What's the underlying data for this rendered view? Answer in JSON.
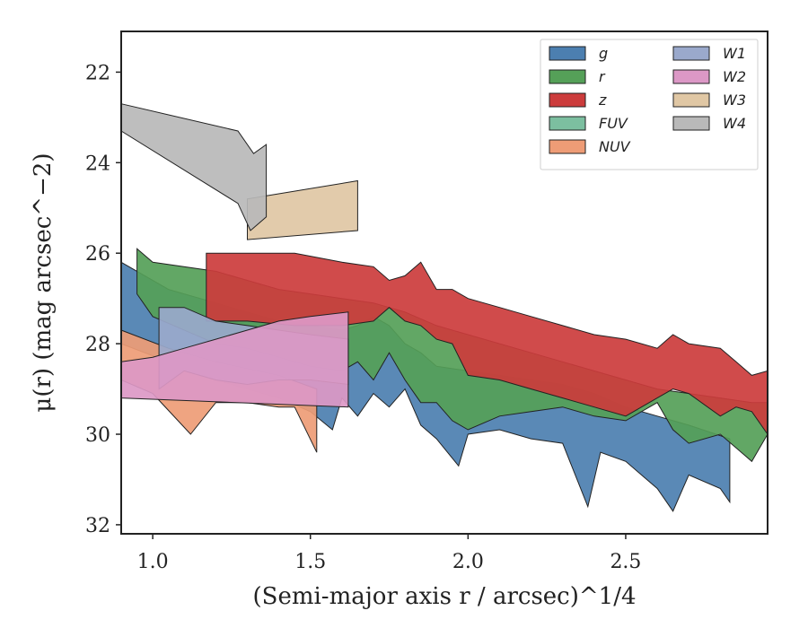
{
  "chart_data": {
    "type": "area",
    "xlabel": "(Semi-major axis r / arcsec)^1/4",
    "ylabel": "μ(r) (mag arcsec^−2)",
    "xlim": [
      0.9,
      2.95
    ],
    "ylim": [
      32.2,
      21.1
    ],
    "y_inverted": true,
    "x_ticks": [
      1.0,
      1.5,
      2.0,
      2.5
    ],
    "y_ticks": [
      22,
      24,
      26,
      28,
      30,
      32
    ],
    "grid": false,
    "legend": {
      "placement": "top-right",
      "columns": 2
    },
    "series": [
      {
        "name": "g",
        "color": "#4c7fb0",
        "upper": [
          [
            0.9,
            26.2
          ],
          [
            1.05,
            26.8
          ],
          [
            1.2,
            27.1
          ],
          [
            1.3,
            27.3
          ],
          [
            1.4,
            27.5
          ],
          [
            1.5,
            27.6
          ],
          [
            1.6,
            27.7
          ],
          [
            1.65,
            27.6
          ],
          [
            1.7,
            27.4
          ],
          [
            1.75,
            27.6
          ],
          [
            1.8,
            28.0
          ],
          [
            1.85,
            28.2
          ],
          [
            1.9,
            28.5
          ],
          [
            2.0,
            28.6
          ],
          [
            2.1,
            28.7
          ],
          [
            2.2,
            28.8
          ],
          [
            2.3,
            28.9
          ],
          [
            2.4,
            29.1
          ],
          [
            2.5,
            29.4
          ],
          [
            2.6,
            29.6
          ],
          [
            2.7,
            29.8
          ],
          [
            2.83,
            30.1
          ]
        ],
        "lower": [
          [
            0.9,
            28.0
          ],
          [
            1.05,
            28.4
          ],
          [
            1.2,
            28.8
          ],
          [
            1.3,
            29.0
          ],
          [
            1.4,
            29.2
          ],
          [
            1.5,
            29.5
          ],
          [
            1.57,
            29.9
          ],
          [
            1.6,
            29.2
          ],
          [
            1.65,
            29.6
          ],
          [
            1.7,
            29.1
          ],
          [
            1.75,
            29.4
          ],
          [
            1.8,
            29.0
          ],
          [
            1.85,
            29.8
          ],
          [
            1.9,
            30.1
          ],
          [
            1.97,
            30.7
          ],
          [
            2.0,
            30.0
          ],
          [
            2.1,
            29.9
          ],
          [
            2.2,
            30.1
          ],
          [
            2.3,
            30.2
          ],
          [
            2.38,
            31.6
          ],
          [
            2.42,
            30.4
          ],
          [
            2.5,
            30.6
          ],
          [
            2.55,
            30.9
          ],
          [
            2.6,
            31.2
          ],
          [
            2.65,
            31.7
          ],
          [
            2.7,
            30.9
          ],
          [
            2.8,
            31.2
          ],
          [
            2.83,
            31.5
          ]
        ]
      },
      {
        "name": "r",
        "color": "#55a058",
        "upper": [
          [
            0.95,
            25.9
          ],
          [
            1.0,
            26.2
          ],
          [
            1.2,
            26.4
          ],
          [
            1.3,
            26.6
          ],
          [
            1.4,
            26.8
          ],
          [
            1.5,
            26.9
          ],
          [
            1.6,
            27.0
          ],
          [
            1.7,
            27.1
          ],
          [
            1.8,
            27.3
          ],
          [
            1.9,
            27.6
          ],
          [
            2.0,
            27.8
          ],
          [
            2.1,
            28.0
          ],
          [
            2.2,
            28.2
          ],
          [
            2.3,
            28.4
          ],
          [
            2.4,
            28.6
          ],
          [
            2.5,
            28.8
          ],
          [
            2.6,
            29.0
          ],
          [
            2.7,
            29.1
          ],
          [
            2.8,
            29.2
          ],
          [
            2.9,
            29.3
          ],
          [
            2.95,
            29.3
          ]
        ],
        "lower": [
          [
            0.95,
            26.9
          ],
          [
            1.0,
            27.4
          ],
          [
            1.2,
            28.0
          ],
          [
            1.3,
            28.1
          ],
          [
            1.4,
            28.3
          ],
          [
            1.5,
            28.5
          ],
          [
            1.6,
            28.6
          ],
          [
            1.65,
            28.4
          ],
          [
            1.7,
            28.8
          ],
          [
            1.75,
            28.2
          ],
          [
            1.8,
            28.8
          ],
          [
            1.85,
            29.3
          ],
          [
            1.9,
            29.3
          ],
          [
            1.95,
            29.7
          ],
          [
            2.0,
            29.9
          ],
          [
            2.1,
            29.6
          ],
          [
            2.2,
            29.5
          ],
          [
            2.3,
            29.4
          ],
          [
            2.4,
            29.6
          ],
          [
            2.5,
            29.7
          ],
          [
            2.6,
            29.3
          ],
          [
            2.65,
            29.9
          ],
          [
            2.7,
            30.2
          ],
          [
            2.8,
            30.0
          ],
          [
            2.9,
            30.6
          ],
          [
            2.95,
            30.0
          ]
        ]
      },
      {
        "name": "z",
        "color": "#cc3c3c",
        "upper": [
          [
            1.17,
            26.0
          ],
          [
            1.3,
            26.0
          ],
          [
            1.45,
            26.0
          ],
          [
            1.6,
            26.2
          ],
          [
            1.7,
            26.3
          ],
          [
            1.75,
            26.6
          ],
          [
            1.8,
            26.5
          ],
          [
            1.85,
            26.2
          ],
          [
            1.9,
            26.8
          ],
          [
            1.95,
            26.8
          ],
          [
            2.0,
            27.0
          ],
          [
            2.1,
            27.2
          ],
          [
            2.2,
            27.4
          ],
          [
            2.3,
            27.6
          ],
          [
            2.4,
            27.8
          ],
          [
            2.5,
            27.9
          ],
          [
            2.6,
            28.1
          ],
          [
            2.65,
            27.8
          ],
          [
            2.7,
            28.0
          ],
          [
            2.8,
            28.1
          ],
          [
            2.85,
            28.4
          ],
          [
            2.9,
            28.7
          ],
          [
            2.95,
            28.6
          ]
        ],
        "lower": [
          [
            1.17,
            27.5
          ],
          [
            1.3,
            27.5
          ],
          [
            1.45,
            27.6
          ],
          [
            1.6,
            27.6
          ],
          [
            1.7,
            27.5
          ],
          [
            1.75,
            27.2
          ],
          [
            1.8,
            27.5
          ],
          [
            1.85,
            27.6
          ],
          [
            1.9,
            27.9
          ],
          [
            1.95,
            28.0
          ],
          [
            2.0,
            28.7
          ],
          [
            2.1,
            28.8
          ],
          [
            2.2,
            29.0
          ],
          [
            2.3,
            29.2
          ],
          [
            2.4,
            29.4
          ],
          [
            2.5,
            29.6
          ],
          [
            2.6,
            29.2
          ],
          [
            2.65,
            29.0
          ],
          [
            2.7,
            29.1
          ],
          [
            2.8,
            29.6
          ],
          [
            2.85,
            29.4
          ],
          [
            2.9,
            29.5
          ],
          [
            2.95,
            30.0
          ]
        ]
      },
      {
        "name": "FUV",
        "color": "#7cbfa0",
        "upper": [],
        "lower": []
      },
      {
        "name": "NUV",
        "color": "#ee9c76",
        "upper": [
          [
            0.9,
            27.7
          ],
          [
            1.05,
            28.1
          ],
          [
            1.2,
            28.4
          ],
          [
            1.4,
            28.7
          ],
          [
            1.52,
            29.0
          ]
        ],
        "lower": [
          [
            0.9,
            28.8
          ],
          [
            1.0,
            29.1
          ],
          [
            1.12,
            30.0
          ],
          [
            1.2,
            29.3
          ],
          [
            1.3,
            29.3
          ],
          [
            1.4,
            29.4
          ],
          [
            1.45,
            29.4
          ],
          [
            1.52,
            30.4
          ]
        ]
      },
      {
        "name": "W1",
        "color": "#9aa9cc",
        "upper": [
          [
            1.02,
            27.2
          ],
          [
            1.1,
            27.2
          ],
          [
            1.2,
            27.5
          ],
          [
            1.3,
            27.6
          ],
          [
            1.4,
            27.7
          ],
          [
            1.5,
            27.8
          ],
          [
            1.62,
            27.9
          ]
        ],
        "lower": [
          [
            1.02,
            29.0
          ],
          [
            1.1,
            28.6
          ],
          [
            1.2,
            28.8
          ],
          [
            1.3,
            28.9
          ],
          [
            1.4,
            28.8
          ],
          [
            1.5,
            28.8
          ],
          [
            1.62,
            28.9
          ]
        ]
      },
      {
        "name": "W2",
        "color": "#dc98c6",
        "upper": [
          [
            0.9,
            28.4
          ],
          [
            1.0,
            28.3
          ],
          [
            1.1,
            28.1
          ],
          [
            1.2,
            27.9
          ],
          [
            1.3,
            27.7
          ],
          [
            1.4,
            27.5
          ],
          [
            1.5,
            27.4
          ],
          [
            1.62,
            27.3
          ]
        ],
        "lower": [
          [
            0.9,
            29.2
          ],
          [
            1.62,
            29.4
          ]
        ]
      },
      {
        "name": "W3",
        "color": "#e0c7a4",
        "upper": [
          [
            1.3,
            24.8
          ],
          [
            1.65,
            24.4
          ]
        ],
        "lower": [
          [
            1.3,
            25.7
          ],
          [
            1.65,
            25.5
          ]
        ]
      },
      {
        "name": "W4",
        "color": "#b9b9b9",
        "upper": [
          [
            0.9,
            22.7
          ],
          [
            1.27,
            23.3
          ],
          [
            1.32,
            23.8
          ],
          [
            1.36,
            23.6
          ]
        ],
        "lower": [
          [
            0.9,
            23.3
          ],
          [
            1.27,
            24.9
          ],
          [
            1.31,
            25.5
          ],
          [
            1.36,
            25.2
          ]
        ]
      }
    ]
  }
}
